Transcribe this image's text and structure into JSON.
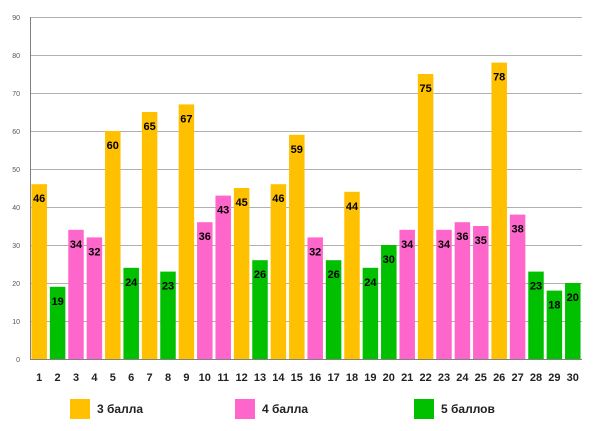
{
  "chart_data": {
    "type": "bar",
    "title": "",
    "xlabel": "",
    "ylabel": "",
    "ylim": [
      0,
      90
    ],
    "yticks": [
      0,
      10,
      20,
      30,
      40,
      50,
      60,
      70,
      80,
      90
    ],
    "grid": true,
    "legend_position": "bottom",
    "categories": [
      "1",
      "2",
      "3",
      "4",
      "5",
      "6",
      "7",
      "8",
      "9",
      "10",
      "11",
      "12",
      "13",
      "14",
      "15",
      "16",
      "17",
      "18",
      "19",
      "20",
      "21",
      "22",
      "23",
      "24",
      "25",
      "26",
      "27",
      "28",
      "29",
      "30"
    ],
    "values": [
      46,
      19,
      34,
      32,
      60,
      24,
      65,
      23,
      67,
      36,
      43,
      45,
      26,
      46,
      59,
      32,
      26,
      44,
      24,
      30,
      34,
      75,
      34,
      36,
      35,
      78,
      38,
      23,
      18,
      20
    ],
    "groups": [
      "3",
      "5",
      "4",
      "4",
      "3",
      "5",
      "3",
      "5",
      "3",
      "4",
      "4",
      "3",
      "5",
      "3",
      "3",
      "4",
      "5",
      "3",
      "5",
      "5",
      "4",
      "3",
      "4",
      "4",
      "4",
      "3",
      "4",
      "5",
      "5",
      "5"
    ],
    "series": [
      {
        "key": "3",
        "name": "3 балла",
        "color": "#ffc000"
      },
      {
        "key": "4",
        "name": "4 балла",
        "color": "#ff66cc"
      },
      {
        "key": "5",
        "name": "5 баллов",
        "color": "#00c000"
      }
    ]
  }
}
